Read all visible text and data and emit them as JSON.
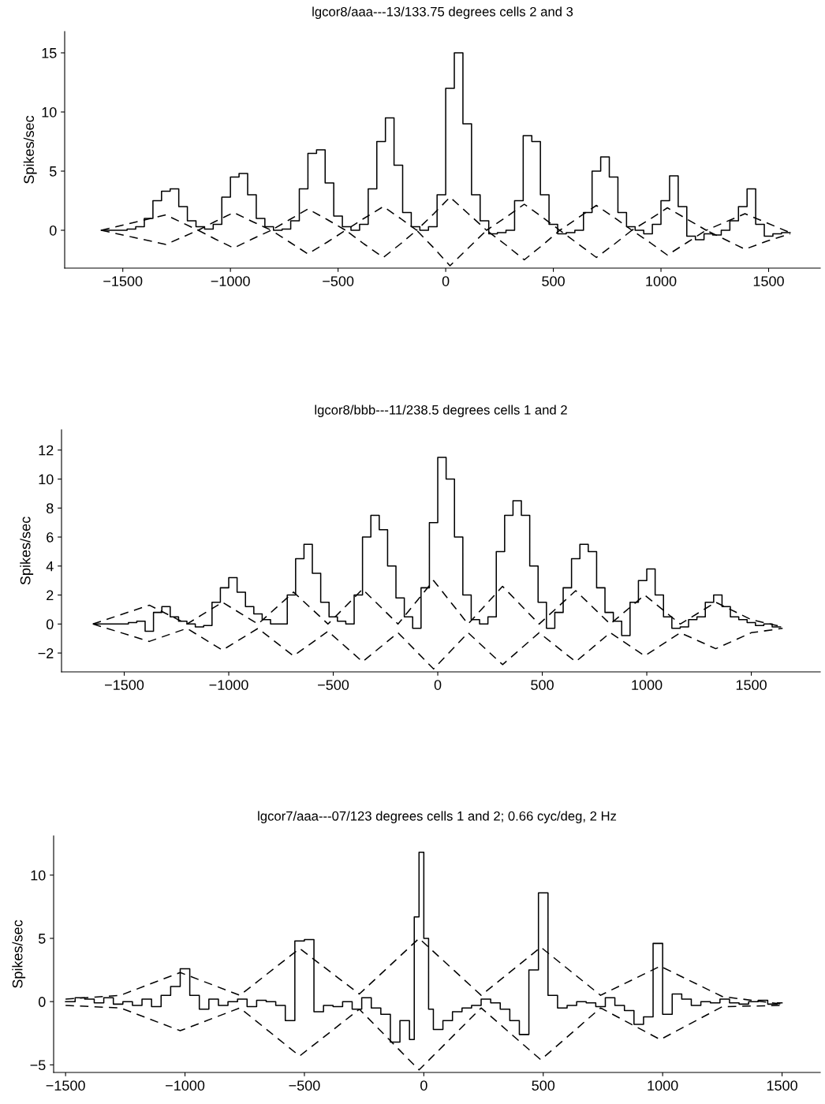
{
  "chart_data": [
    {
      "type": "step",
      "title": "lgcor8/aaa---13/133.75 degrees cells 2 and 3",
      "ylabel": "Spikes/sec",
      "xlim": [
        -1770,
        1740
      ],
      "ylim": [
        -3.2,
        16.8
      ],
      "xticks": [
        -1500,
        -1000,
        -500,
        0,
        500,
        1000,
        1500
      ],
      "yticks": [
        0,
        5,
        10,
        15
      ],
      "grid": false,
      "legend": false,
      "series": [
        {
          "type": "step",
          "color": "#000000",
          "x": [
            -1600,
            -1560,
            -1520,
            -1480,
            -1440,
            -1400,
            -1360,
            -1320,
            -1280,
            -1240,
            -1200,
            -1160,
            -1120,
            -1080,
            -1040,
            -1000,
            -960,
            -920,
            -880,
            -840,
            -800,
            -760,
            -720,
            -680,
            -640,
            -600,
            -560,
            -520,
            -480,
            -440,
            -400,
            -360,
            -320,
            -280,
            -240,
            -200,
            -160,
            -120,
            -80,
            -40,
            0,
            40,
            80,
            120,
            160,
            200,
            240,
            280,
            320,
            360,
            400,
            440,
            480,
            520,
            560,
            600,
            640,
            680,
            720,
            760,
            800,
            840,
            880,
            920,
            960,
            1000,
            1040,
            1080,
            1120,
            1160,
            1200,
            1240,
            1280,
            1320,
            1360,
            1400,
            1440,
            1480,
            1520,
            1560,
            1600
          ],
          "values": [
            0,
            0,
            0,
            0.1,
            0.3,
            1.0,
            2.5,
            3.3,
            3.5,
            2,
            0.8,
            0.3,
            0.1,
            0.5,
            2.8,
            4.5,
            4.8,
            3,
            1,
            0.3,
            0,
            0.1,
            0.8,
            3.5,
            6.5,
            6.8,
            4,
            1.2,
            0.3,
            0,
            0.5,
            3.5,
            7.5,
            9.5,
            5.5,
            1.5,
            0.3,
            0,
            0.3,
            3,
            12,
            15,
            9,
            3,
            0.8,
            -0.3,
            -0.2,
            0,
            2.5,
            8,
            7.5,
            3,
            0.5,
            -0.3,
            -0.2,
            0,
            1.5,
            5,
            6.2,
            4.5,
            1.5,
            0.3,
            0,
            -0.3,
            0.5,
            2.5,
            4.6,
            2,
            -0.5,
            -0.8,
            -0.3,
            -0.4,
            0,
            0.8,
            2,
            3.5,
            0.5,
            -0.5,
            -0.3,
            -0.2,
            -0.2
          ]
        },
        {
          "type": "line",
          "line_style": "dashed",
          "color": "#000000",
          "x": [
            -1600,
            -1450,
            -1300,
            -1225,
            -1150,
            -1070,
            -985,
            -900,
            -810,
            -725,
            -640,
            -550,
            -465,
            -380,
            -290,
            -210,
            -135,
            -55,
            20,
            105,
            190,
            280,
            365,
            450,
            530,
            615,
            700,
            785,
            865,
            950,
            1030,
            1120,
            1210,
            1300,
            1390,
            1495,
            1600
          ],
          "values": [
            0,
            0.65,
            1.3,
            0.65,
            0,
            0.75,
            1.5,
            0.75,
            0,
            0.9,
            1.8,
            0.9,
            0,
            1.0,
            2.0,
            1.0,
            0,
            1.4,
            2.8,
            1.4,
            0,
            1.1,
            2.2,
            1.1,
            0,
            1.05,
            2.1,
            1.05,
            0,
            0.95,
            1.9,
            0.95,
            0,
            0.7,
            1.4,
            0.6,
            -0.2
          ]
        },
        {
          "type": "line",
          "line_style": "dashed",
          "color": "#000000",
          "x": [
            -1600,
            -1450,
            -1300,
            -1225,
            -1150,
            -1070,
            -985,
            -900,
            -810,
            -725,
            -640,
            -550,
            -465,
            -380,
            -290,
            -210,
            -135,
            -55,
            20,
            105,
            190,
            280,
            365,
            450,
            530,
            615,
            700,
            785,
            865,
            950,
            1030,
            1120,
            1210,
            1300,
            1390,
            1495,
            1600
          ],
          "values": [
            0,
            -0.6,
            -1.2,
            -0.6,
            0,
            -0.75,
            -1.5,
            -0.75,
            0,
            -1.0,
            -2.0,
            -1.0,
            0,
            -1.15,
            -2.3,
            -1.15,
            0,
            -1.5,
            -3.0,
            -1.5,
            0,
            -1.25,
            -2.5,
            -1.25,
            0,
            -1.15,
            -2.3,
            -1.15,
            0,
            -1.05,
            -2.1,
            -1.05,
            0,
            -0.8,
            -1.6,
            -0.9,
            -0.3
          ]
        }
      ]
    },
    {
      "type": "step",
      "title": "lgcor8/bbb---11/238.5 degrees cells 1 and 2",
      "ylabel": "Spikes/sec",
      "xlim": [
        -1800,
        1830
      ],
      "ylim": [
        -3.3,
        13.4
      ],
      "xticks": [
        -1500,
        -1000,
        -500,
        0,
        500,
        1000,
        1500
      ],
      "yticks": [
        -2,
        0,
        2,
        4,
        6,
        8,
        10,
        12
      ],
      "grid": false,
      "legend": false,
      "series": [
        {
          "type": "step",
          "color": "#000000",
          "x": [
            -1640,
            -1600,
            -1560,
            -1520,
            -1480,
            -1440,
            -1400,
            -1360,
            -1320,
            -1280,
            -1240,
            -1200,
            -1160,
            -1120,
            -1080,
            -1040,
            -1000,
            -960,
            -920,
            -880,
            -840,
            -800,
            -760,
            -720,
            -680,
            -640,
            -600,
            -560,
            -520,
            -480,
            -440,
            -400,
            -360,
            -320,
            -280,
            -240,
            -200,
            -160,
            -120,
            -80,
            -40,
            0,
            40,
            80,
            120,
            160,
            200,
            240,
            280,
            320,
            360,
            400,
            440,
            480,
            520,
            560,
            600,
            640,
            680,
            720,
            760,
            800,
            840,
            880,
            920,
            960,
            1000,
            1040,
            1080,
            1120,
            1160,
            1200,
            1240,
            1280,
            1320,
            1360,
            1400,
            1440,
            1480,
            1520,
            1560,
            1600,
            1640
          ],
          "values": [
            0,
            0,
            0,
            0,
            0.1,
            0.2,
            -0.5,
            0.8,
            1.2,
            0.5,
            0.2,
            0,
            -0.2,
            -0.1,
            1.5,
            2.5,
            3.2,
            2.2,
            1.2,
            0.7,
            0.3,
            0,
            0,
            2,
            4.5,
            5.5,
            3.5,
            1.5,
            0.5,
            0.2,
            0,
            2,
            6,
            7.5,
            6.5,
            4,
            1.8,
            0.5,
            -0.3,
            2.5,
            7,
            11.5,
            10,
            6,
            2,
            0.3,
            0,
            0.5,
            5,
            7.5,
            8.5,
            7.5,
            4,
            1.5,
            -0.3,
            0.8,
            2.5,
            4.5,
            5.5,
            5,
            2.5,
            0.8,
            0.2,
            -0.8,
            1.5,
            3,
            3.8,
            2,
            0.5,
            -0.3,
            -0.2,
            0.3,
            0.5,
            1.5,
            2,
            1.2,
            0.5,
            0.3,
            0.1,
            -0.1,
            0,
            -0.2,
            -0.2
          ]
        },
        {
          "type": "line",
          "line_style": "dashed",
          "color": "#000000",
          "x": [
            -1650,
            -1380,
            -1200,
            -1030,
            -860,
            -690,
            -525,
            -360,
            -190,
            -20,
            145,
            310,
            485,
            660,
            825,
            990,
            1160,
            1330,
            1500,
            1650
          ],
          "values": [
            0,
            1.3,
            0,
            1.5,
            0,
            2.2,
            0,
            2.4,
            0,
            3.0,
            0,
            2.6,
            0,
            2.3,
            0,
            2.0,
            0,
            1.5,
            0.3,
            -0.2
          ]
        },
        {
          "type": "line",
          "line_style": "dashed",
          "color": "#000000",
          "x": [
            -1650,
            -1380,
            -1200,
            -1030,
            -860,
            -690,
            -525,
            -360,
            -190,
            -20,
            145,
            310,
            485,
            660,
            825,
            990,
            1160,
            1330,
            1500,
            1650
          ],
          "values": [
            0,
            -1.2,
            -0.3,
            -1.8,
            -0.3,
            -2.2,
            -0.5,
            -2.6,
            -0.6,
            -3.1,
            -0.6,
            -2.8,
            -0.6,
            -2.6,
            -0.6,
            -2.2,
            -0.6,
            -1.7,
            -0.6,
            -0.3
          ]
        }
      ]
    },
    {
      "type": "step",
      "title": "lgcor7/aaa---07/123 degrees cells 1 and 2; 0.66 cyc/deg, 2 Hz",
      "ylabel": "Spikes/sec",
      "xlim": [
        -1550,
        1660
      ],
      "ylim": [
        -5.6,
        13.1
      ],
      "xticks": [
        -1500,
        -1000,
        -500,
        0,
        500,
        1000,
        1500
      ],
      "yticks": [
        -5,
        0,
        5,
        10
      ],
      "grid": false,
      "legend": false,
      "series": [
        {
          "type": "step",
          "color": "#000000",
          "x": [
            -1500,
            -1460,
            -1420,
            -1380,
            -1340,
            -1300,
            -1260,
            -1220,
            -1180,
            -1140,
            -1100,
            -1060,
            -1020,
            -980,
            -940,
            -900,
            -860,
            -820,
            -780,
            -740,
            -700,
            -660,
            -620,
            -580,
            -540,
            -500,
            -460,
            -420,
            -380,
            -340,
            -300,
            -260,
            -220,
            -180,
            -140,
            -100,
            -60,
            -40,
            -20,
            0,
            20,
            40,
            80,
            120,
            160,
            200,
            240,
            280,
            320,
            360,
            400,
            440,
            480,
            520,
            560,
            600,
            640,
            680,
            720,
            760,
            800,
            840,
            880,
            920,
            960,
            1000,
            1040,
            1080,
            1120,
            1160,
            1200,
            1240,
            1280,
            1320,
            1360,
            1400,
            1440,
            1480,
            1500
          ],
          "values": [
            0,
            0.3,
            0.2,
            -0.1,
            0.3,
            -0.2,
            0,
            -0.3,
            0.2,
            -0.4,
            0.5,
            1.2,
            2.6,
            0.5,
            -0.6,
            0.2,
            -0.3,
            0,
            0.2,
            -0.4,
            0.1,
            0,
            -0.3,
            -1.5,
            4.8,
            4.9,
            -0.8,
            -0.3,
            -0.4,
            0,
            -0.6,
            0.3,
            -0.5,
            -1,
            -3.2,
            -1.5,
            -3,
            6.7,
            11.8,
            5,
            -0.6,
            -2.2,
            -1.5,
            -0.8,
            -0.5,
            -0.3,
            0.2,
            -0.1,
            -0.6,
            -1.5,
            -2.6,
            2.5,
            8.6,
            0.5,
            -0.5,
            -0.3,
            0,
            -0.1,
            -0.4,
            0.3,
            -0.3,
            -0.7,
            -1.8,
            -1.2,
            4.6,
            -1,
            0.6,
            0.2,
            -0.3,
            0,
            -0.1,
            0.2,
            -0.1,
            -0.2,
            0,
            0.1,
            -0.2,
            -0.1,
            -0.1
          ]
        },
        {
          "type": "line",
          "line_style": "dashed",
          "color": "#000000",
          "x": [
            -1500,
            -1270,
            -1020,
            -770,
            -520,
            -270,
            -20,
            240,
            490,
            740,
            990,
            1250,
            1500
          ],
          "values": [
            0.2,
            0.5,
            2.3,
            0.5,
            4.2,
            0.6,
            5.0,
            0.5,
            4.3,
            0.5,
            2.8,
            0.4,
            -0.2
          ]
        },
        {
          "type": "line",
          "line_style": "dashed",
          "color": "#000000",
          "x": [
            -1500,
            -1270,
            -1020,
            -770,
            -520,
            -270,
            -20,
            240,
            490,
            740,
            990,
            1250,
            1500
          ],
          "values": [
            -0.3,
            -0.5,
            -2.3,
            -0.5,
            -4.3,
            -0.6,
            -5.4,
            -0.5,
            -4.6,
            -0.5,
            -3.0,
            -0.4,
            -0.3
          ]
        }
      ]
    }
  ]
}
